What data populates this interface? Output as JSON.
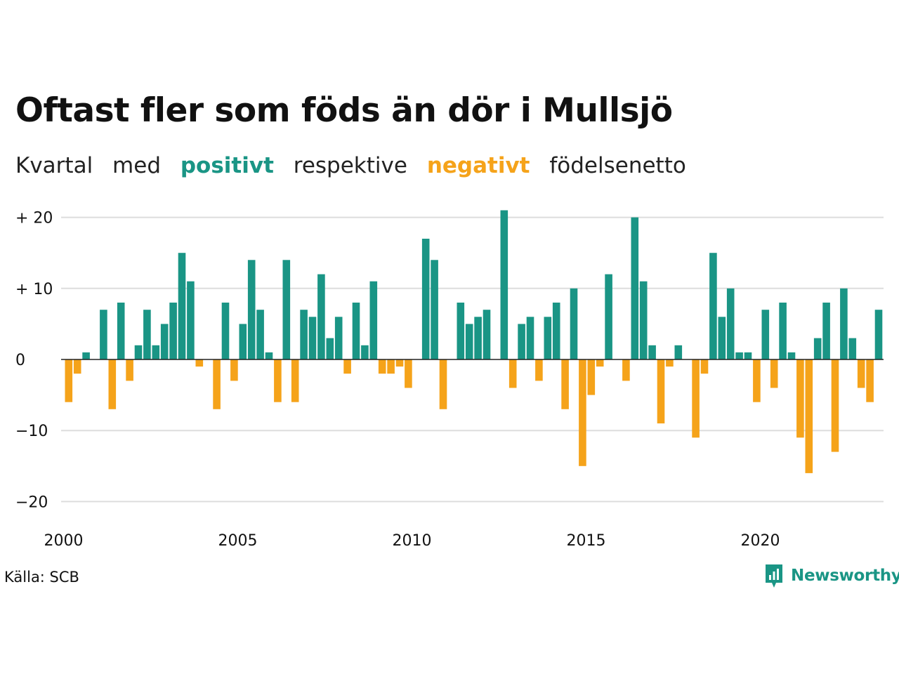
{
  "header": {
    "title": "Oftast fler som föds än dör i Mullsjö",
    "subtitle": {
      "part1": "Kvartal",
      "part2": "med",
      "positive": "positivt",
      "part3": "respektive",
      "negative": "negativt",
      "part4": "födelsenetto"
    }
  },
  "footer": {
    "source": "Källa: SCB",
    "brand": "Newsworthy"
  },
  "colors": {
    "positive": "#1a9585",
    "negative": "#f5a31a",
    "grid": "#dddddd",
    "zero_line": "#222222"
  },
  "chart_data": {
    "type": "bar",
    "x_start_year": 2000,
    "x_start_quarter": 1,
    "x_tick_labels": [
      {
        "year": 2000,
        "label": "2000"
      },
      {
        "year": 2005,
        "label": "2005"
      },
      {
        "year": 2010,
        "label": "2010"
      },
      {
        "year": 2015,
        "label": "2015"
      },
      {
        "year": 2020,
        "label": "2020"
      }
    ],
    "y_ticks": [
      {
        "value": 20,
        "label": "+ 20"
      },
      {
        "value": 10,
        "label": "+ 10"
      },
      {
        "value": 0,
        "label": "0"
      },
      {
        "value": -10,
        "label": "−10"
      },
      {
        "value": -20,
        "label": "−20"
      }
    ],
    "ylim": [
      -20,
      21
    ],
    "grid": true,
    "values": [
      -6,
      -2,
      1,
      0,
      7,
      -7,
      8,
      -3,
      2,
      7,
      2,
      5,
      8,
      15,
      11,
      -1,
      0,
      -7,
      8,
      -3,
      5,
      14,
      7,
      1,
      -6,
      14,
      -6,
      7,
      6,
      12,
      3,
      6,
      -2,
      8,
      2,
      11,
      -2,
      -2,
      -1,
      -4,
      0,
      17,
      14,
      -7,
      0,
      8,
      5,
      6,
      7,
      0,
      21,
      -4,
      5,
      6,
      -3,
      6,
      8,
      -7,
      10,
      -15,
      -5,
      -1,
      12,
      0,
      -3,
      20,
      11,
      2,
      -9,
      -1,
      2,
      0,
      -11,
      -2,
      15,
      6,
      10,
      1,
      1,
      -6,
      7,
      -4,
      8,
      1,
      -11,
      -16,
      3,
      8,
      -13,
      10,
      3,
      -4,
      -6,
      7
    ]
  }
}
